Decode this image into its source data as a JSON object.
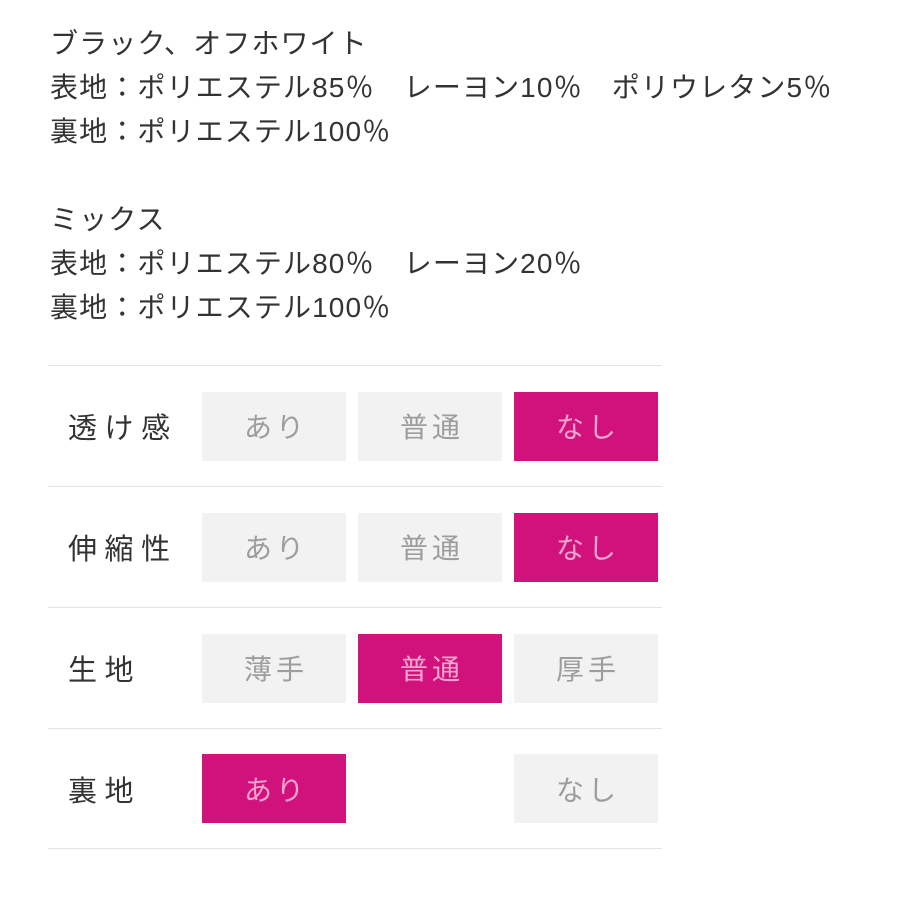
{
  "colors": {
    "accent": "#d2127c",
    "accent_text": "#f2a5cf",
    "option_bg": "#f2f2f2",
    "option_text": "#9d9d9d",
    "text": "#333333",
    "divider": "#e4e4e4",
    "page_bg": "#ffffff"
  },
  "description": {
    "blocks": [
      {
        "lines": [
          "ブラック、オフホワイト",
          "表地：ポリエステル85％　レーヨン10％　ポリウレタン5％",
          "裏地：ポリエステル100％"
        ]
      },
      {
        "lines": [
          "ミックス",
          "表地：ポリエステル80％　レーヨン20％",
          "裏地：ポリエステル100％"
        ]
      }
    ]
  },
  "spec_table": {
    "rows": [
      {
        "label": "透け感",
        "options": [
          {
            "label": "あり",
            "selected": false
          },
          {
            "label": "普通",
            "selected": false
          },
          {
            "label": "なし",
            "selected": true
          }
        ]
      },
      {
        "label": "伸縮性",
        "options": [
          {
            "label": "あり",
            "selected": false
          },
          {
            "label": "普通",
            "selected": false
          },
          {
            "label": "なし",
            "selected": true
          }
        ]
      },
      {
        "label": "生地",
        "options": [
          {
            "label": "薄手",
            "selected": false
          },
          {
            "label": "普通",
            "selected": true
          },
          {
            "label": "厚手",
            "selected": false
          }
        ]
      },
      {
        "label": "裏地",
        "options": [
          {
            "label": "あり",
            "selected": true
          },
          {
            "label": "なし",
            "selected": false
          }
        ]
      }
    ]
  }
}
